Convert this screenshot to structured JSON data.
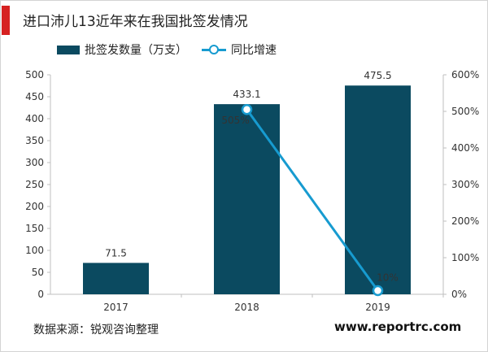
{
  "title": "进口沛儿13近年来在我国批签发情况",
  "source": "数据来源：锐观咨询整理",
  "site": "www.reportrc.com",
  "colors": {
    "bar": "#0b4a60",
    "line": "#179bd0",
    "accent": "#d62121"
  },
  "chart_data": {
    "type": "bar",
    "categories": [
      "2017",
      "2018",
      "2019"
    ],
    "series": [
      {
        "name": "批签发数量（万支）",
        "type": "bar",
        "axis": "left",
        "values": [
          71.5,
          433.1,
          475.5
        ],
        "labels": [
          "71.5",
          "433.1",
          "475.5"
        ]
      },
      {
        "name": "同比增速",
        "type": "line",
        "axis": "right",
        "values": [
          null,
          505,
          10
        ],
        "labels": [
          "",
          "505%",
          "10%"
        ]
      }
    ],
    "y_left": {
      "min": 0,
      "max": 500,
      "ticks": [
        "0",
        "50",
        "100",
        "150",
        "200",
        "250",
        "300",
        "350",
        "400",
        "450",
        "500"
      ]
    },
    "y_right": {
      "min": 0,
      "max": 600,
      "ticks": [
        "0%",
        "100%",
        "200%",
        "300%",
        "400%",
        "500%",
        "600%"
      ]
    },
    "grid": false,
    "legend": "top"
  }
}
